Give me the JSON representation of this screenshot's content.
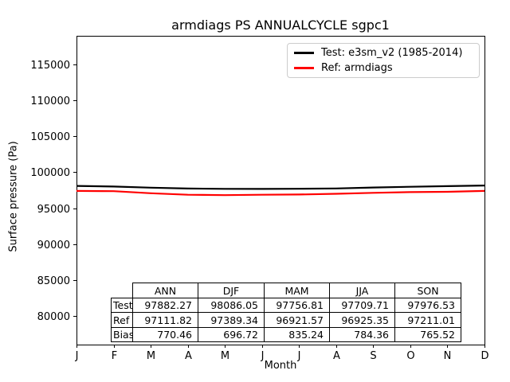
{
  "chart_data": {
    "type": "line",
    "title": "armdiags PS ANNUALCYCLE sgpc1",
    "xlabel": "Month",
    "ylabel": "Surface pressure (Pa)",
    "x_tick_labels": [
      "J",
      "F",
      "M",
      "A",
      "M",
      "J",
      "J",
      "A",
      "S",
      "O",
      "N",
      "D"
    ],
    "y_ticks": [
      80000,
      85000,
      90000,
      95000,
      100000,
      105000,
      110000,
      115000
    ],
    "ylim": [
      76000,
      119000
    ],
    "grid": false,
    "legend_position": "upper right",
    "series": [
      {
        "name": "Test: e3sm_v2 (1985-2014)",
        "color": "#000000",
        "values": [
          98100,
          98008,
          97850,
          97730,
          97690,
          97680,
          97700,
          97749,
          97880,
          97980,
          98070,
          98150
        ]
      },
      {
        "name": "Ref: armdiags",
        "color": "#ff0000",
        "values": [
          97400,
          97368,
          97080,
          96870,
          96815,
          96870,
          96905,
          97001,
          97130,
          97230,
          97273,
          97400
        ]
      }
    ]
  },
  "legend": {
    "entries": [
      {
        "label": "Test: e3sm_v2 (1985-2014)",
        "color": "#000000"
      },
      {
        "label": "Ref: armdiags",
        "color": "#ff0000"
      }
    ]
  },
  "table": {
    "col_headers": [
      "ANN",
      "DJF",
      "MAM",
      "JJA",
      "SON"
    ],
    "rows": [
      {
        "label": "Test",
        "values": [
          "97882.27",
          "98086.05",
          "97756.81",
          "97709.71",
          "97976.53"
        ]
      },
      {
        "label": "Ref",
        "values": [
          "97111.82",
          "97389.34",
          "96921.57",
          "96925.35",
          "97211.01"
        ]
      },
      {
        "label": "Bias",
        "values": [
          "770.46",
          "696.72",
          "835.24",
          "784.36",
          "765.52"
        ]
      }
    ]
  },
  "colors": {
    "axis": "#000000",
    "legend_border": "#cccccc",
    "background": "#ffffff"
  }
}
